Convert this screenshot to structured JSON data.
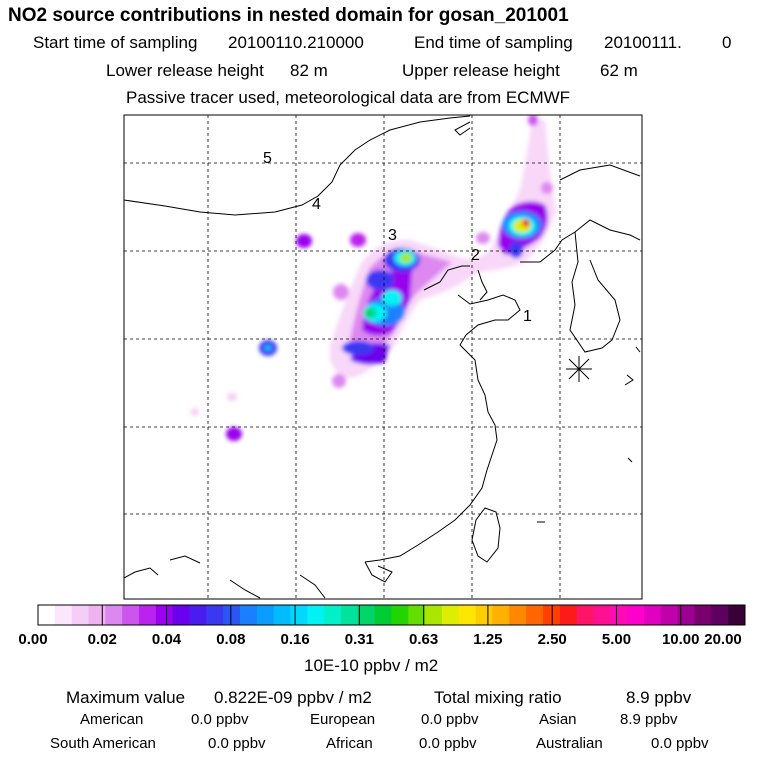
{
  "title": "NO2 source contributions in nested domain for gosan_201001",
  "sampling": {
    "start_label": "Start time of sampling",
    "start_value": "20100110.210000",
    "end_label": "End time of sampling",
    "end_value": "20100111.",
    "end_extra": "0"
  },
  "release": {
    "lower_label": "Lower release height",
    "lower_value": "82 m",
    "upper_label": "Upper release height",
    "upper_value": "62 m"
  },
  "note": "Passive tracer used, meteorological data are from ECMWF",
  "map": {
    "region_labels": [
      "1",
      "2",
      "3",
      "4",
      "5"
    ],
    "receptor_marker": "asterisk-icon"
  },
  "colorbar": {
    "tick_labels": [
      "0.00",
      "0.02",
      "0.04",
      "0.08",
      "0.16",
      "0.31",
      "0.63",
      "1.25",
      "2.50",
      "5.00",
      "10.00",
      "20.00"
    ],
    "colors": [
      "#ffffff",
      "#fbe6fb",
      "#f6cdf6",
      "#efb3ef",
      "#dd88f0",
      "#cc55ee",
      "#bb22ee",
      "#9900ee",
      "#6a00ee",
      "#4a1cf0",
      "#3a39f2",
      "#2c56f4",
      "#1a80ff",
      "#0a9cff",
      "#00bbff",
      "#00d8ff",
      "#00f3f3",
      "#00f0c8",
      "#00e39c",
      "#00d56c",
      "#00cc33",
      "#22d400",
      "#66dd00",
      "#aae600",
      "#ddee00",
      "#ffe600",
      "#ffcc00",
      "#ffb000",
      "#ff8800",
      "#ff6600",
      "#ff4000",
      "#ff1a1a",
      "#ff1466",
      "#ff1093",
      "#ff0ab8",
      "#ff00cc",
      "#e000c0",
      "#c000aa",
      "#9c0090",
      "#7a0070",
      "#5e0060",
      "#3a0038"
    ],
    "units": "10E-10 ppbv / m2"
  },
  "stats": {
    "max_label": "Maximum value",
    "max_value": "0.822E-09 ppbv / m2",
    "total_label": "Total mixing ratio",
    "total_value": "8.9 ppbv",
    "regions": [
      {
        "name": "American",
        "value": "0.0 ppbv"
      },
      {
        "name": "European",
        "value": "0.0 ppbv"
      },
      {
        "name": "Asian",
        "value": "8.9 ppbv"
      },
      {
        "name": "South American",
        "value": "0.0 ppbv"
      },
      {
        "name": "African",
        "value": "0.0 ppbv"
      },
      {
        "name": "Australian",
        "value": "0.0 ppbv"
      }
    ]
  }
}
